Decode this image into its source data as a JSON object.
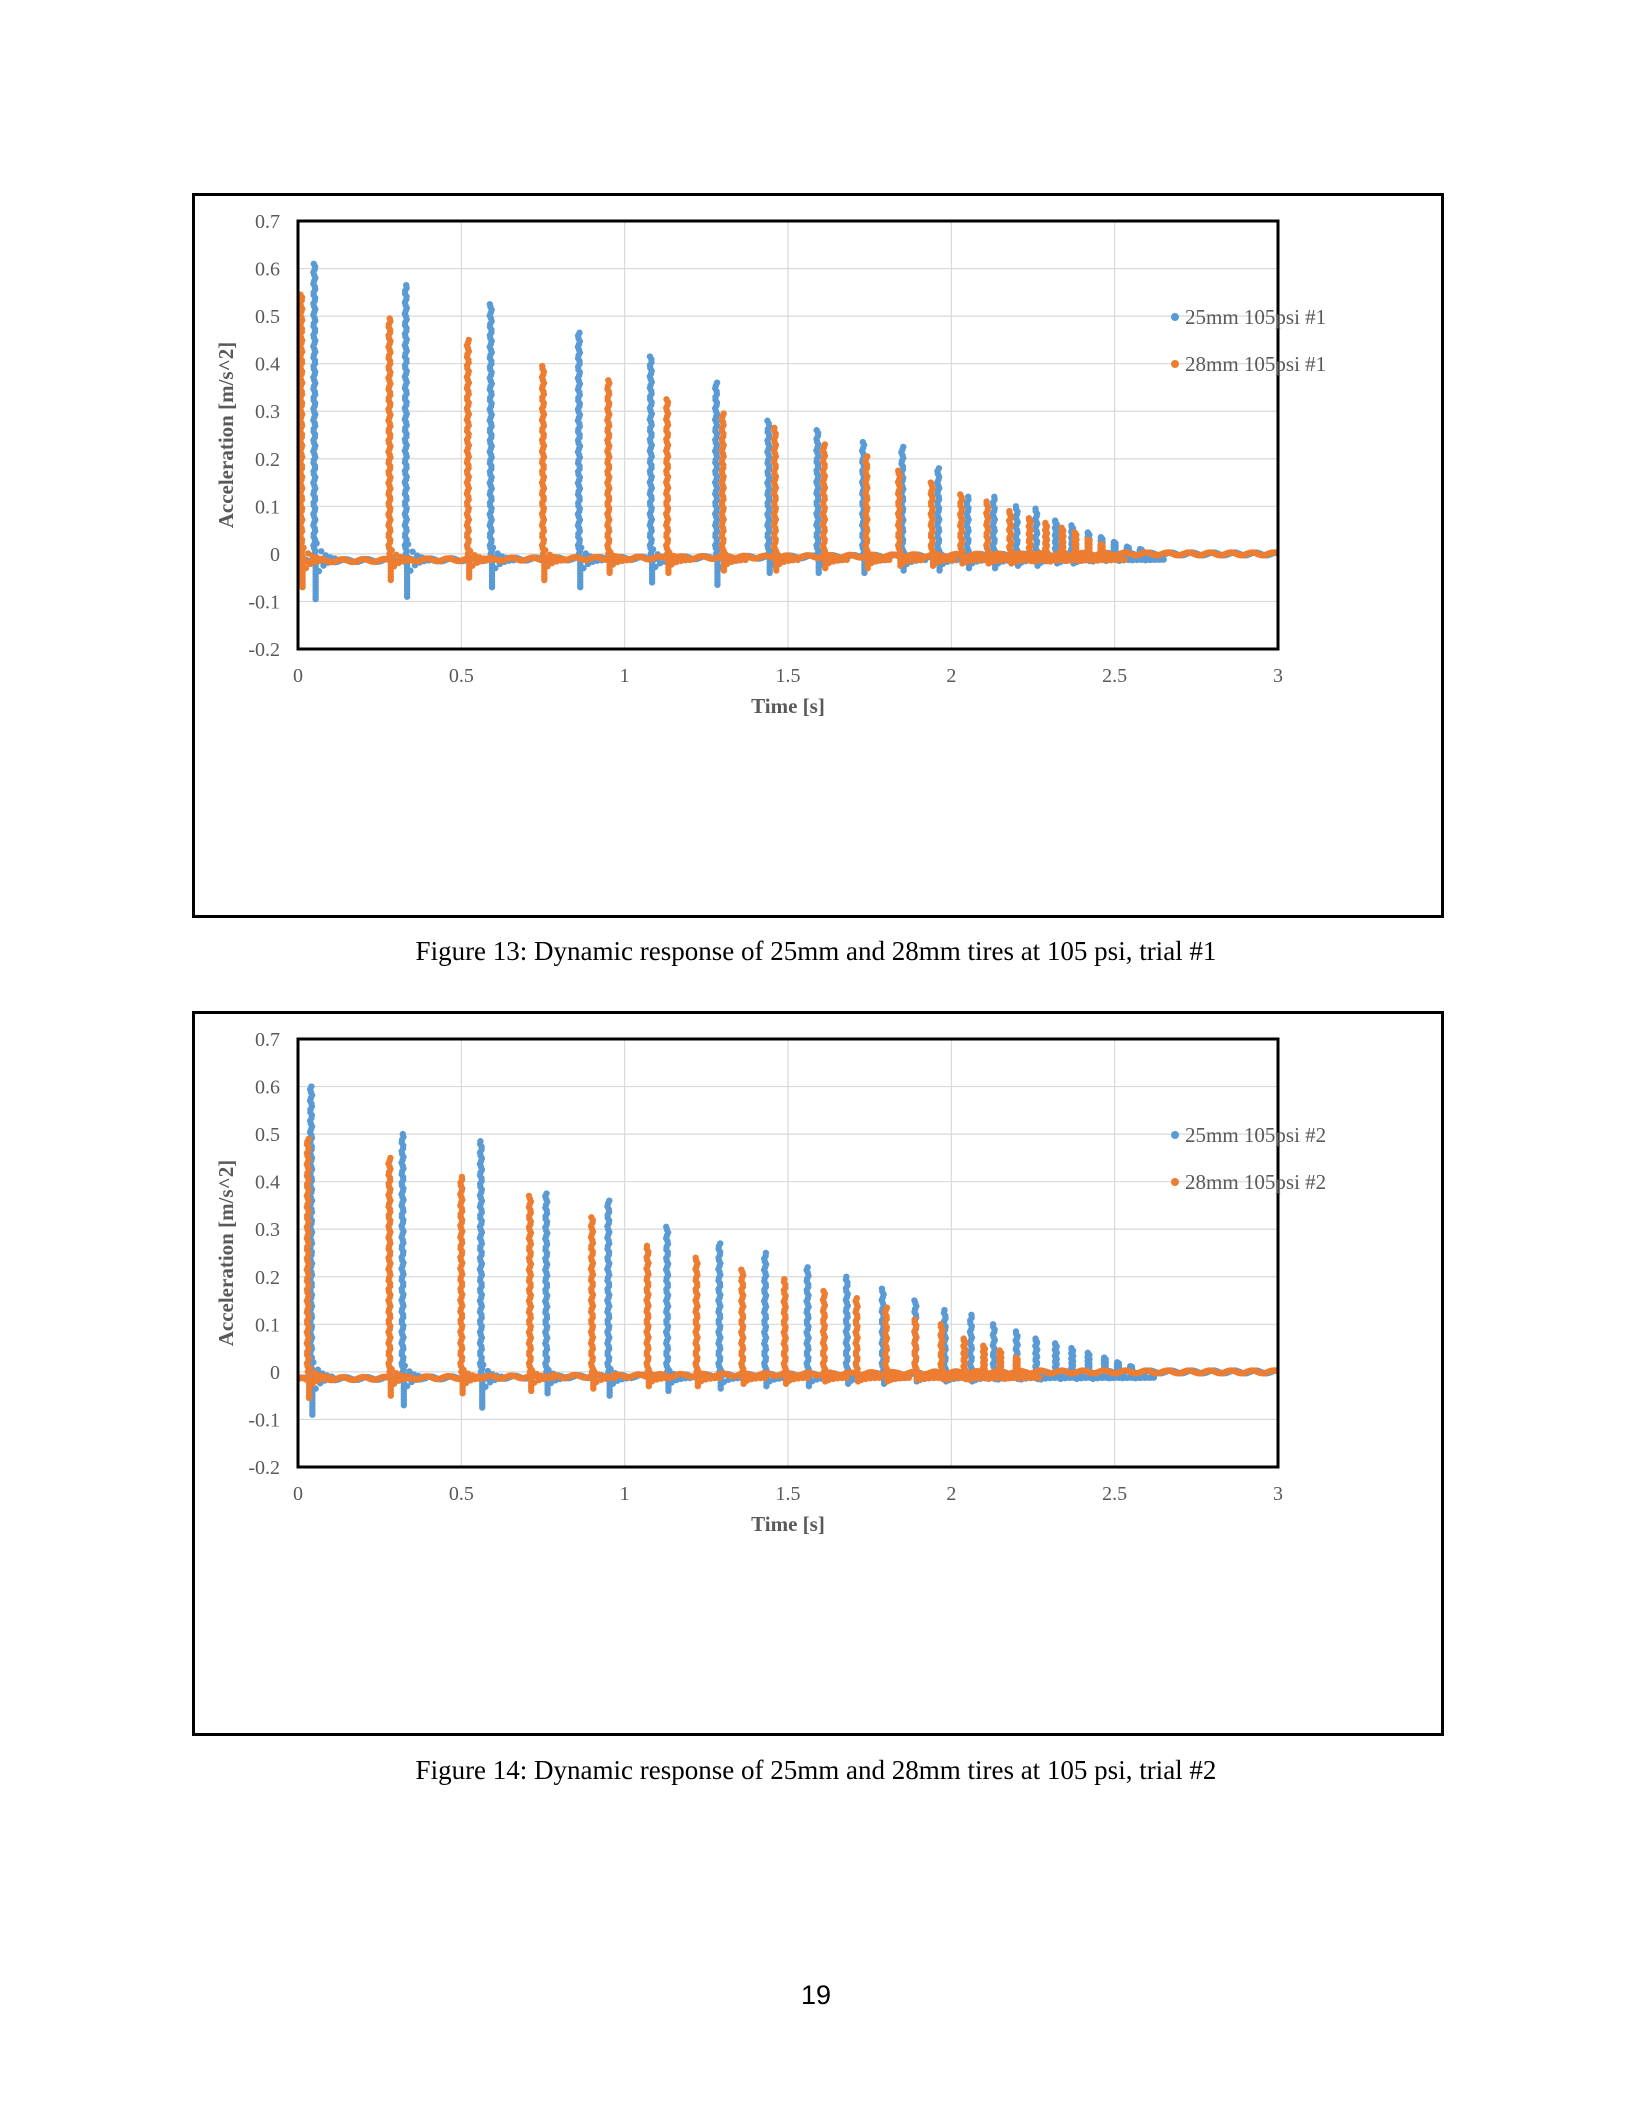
{
  "chart_data": [
    {
      "type": "scatter",
      "xlabel": "Time [s]",
      "ylabel": "Acceleration [m/s^2]",
      "xlim": [
        0,
        3
      ],
      "ylim": [
        -0.2,
        0.7
      ],
      "xticks": [
        "0",
        "0.5",
        "1",
        "1.5",
        "2",
        "2.5",
        "3"
      ],
      "yticks": [
        "0.7",
        "0.6",
        "0.5",
        "0.4",
        "0.3",
        "0.2",
        "0.1",
        "0",
        "-0.1",
        "-0.2"
      ],
      "grid": true,
      "legend_position": "top-right",
      "series": [
        {
          "name": "25mm 105psi #1",
          "color": "#5B9BD5",
          "peaks": [
            {
              "t": 0.05,
              "peak": 0.61,
              "trough": -0.095
            },
            {
              "t": 0.33,
              "peak": 0.565,
              "trough": -0.09
            },
            {
              "t": 0.59,
              "peak": 0.525,
              "trough": -0.07
            },
            {
              "t": 0.86,
              "peak": 0.465,
              "trough": -0.07
            },
            {
              "t": 1.08,
              "peak": 0.415,
              "trough": -0.06
            },
            {
              "t": 1.28,
              "peak": 0.36,
              "trough": -0.065
            },
            {
              "t": 1.44,
              "peak": 0.28,
              "trough": -0.04
            },
            {
              "t": 1.59,
              "peak": 0.26,
              "trough": -0.04
            },
            {
              "t": 1.73,
              "peak": 0.235,
              "trough": -0.04
            },
            {
              "t": 1.85,
              "peak": 0.225,
              "trough": -0.035
            },
            {
              "t": 1.96,
              "peak": 0.18,
              "trough": -0.035
            },
            {
              "t": 2.05,
              "peak": 0.12,
              "trough": -0.03
            },
            {
              "t": 2.13,
              "peak": 0.12,
              "trough": -0.03
            },
            {
              "t": 2.2,
              "peak": 0.1,
              "trough": -0.025
            },
            {
              "t": 2.26,
              "peak": 0.095,
              "trough": -0.025
            },
            {
              "t": 2.32,
              "peak": 0.07,
              "trough": -0.02
            },
            {
              "t": 2.37,
              "peak": 0.06,
              "trough": -0.02
            },
            {
              "t": 2.42,
              "peak": 0.045,
              "trough": -0.015
            },
            {
              "t": 2.46,
              "peak": 0.035,
              "trough": -0.01
            },
            {
              "t": 2.5,
              "peak": 0.025,
              "trough": -0.01
            },
            {
              "t": 2.54,
              "peak": 0.015,
              "trough": -0.005
            },
            {
              "t": 2.58,
              "peak": 0.01,
              "trough": -0.005
            }
          ]
        },
        {
          "name": "28mm 105psi #1",
          "color": "#ED7D31",
          "peaks": [
            {
              "t": 0.01,
              "peak": 0.545,
              "trough": -0.07
            },
            {
              "t": 0.28,
              "peak": 0.495,
              "trough": -0.055
            },
            {
              "t": 0.52,
              "peak": 0.45,
              "trough": -0.05
            },
            {
              "t": 0.75,
              "peak": 0.395,
              "trough": -0.055
            },
            {
              "t": 0.95,
              "peak": 0.365,
              "trough": -0.04
            },
            {
              "t": 1.13,
              "peak": 0.325,
              "trough": -0.04
            },
            {
              "t": 1.3,
              "peak": 0.295,
              "trough": -0.035
            },
            {
              "t": 1.46,
              "peak": 0.265,
              "trough": -0.035
            },
            {
              "t": 1.61,
              "peak": 0.23,
              "trough": -0.03
            },
            {
              "t": 1.74,
              "peak": 0.205,
              "trough": -0.03
            },
            {
              "t": 1.84,
              "peak": 0.175,
              "trough": -0.025
            },
            {
              "t": 1.94,
              "peak": 0.15,
              "trough": -0.025
            },
            {
              "t": 2.03,
              "peak": 0.125,
              "trough": -0.02
            },
            {
              "t": 2.11,
              "peak": 0.11,
              "trough": -0.02
            },
            {
              "t": 2.18,
              "peak": 0.09,
              "trough": -0.02
            },
            {
              "t": 2.24,
              "peak": 0.075,
              "trough": -0.015
            },
            {
              "t": 2.29,
              "peak": 0.065,
              "trough": -0.015
            },
            {
              "t": 2.34,
              "peak": 0.055,
              "trough": -0.01
            },
            {
              "t": 2.38,
              "peak": 0.045,
              "trough": -0.01
            },
            {
              "t": 2.42,
              "peak": 0.03,
              "trough": -0.01
            },
            {
              "t": 2.46,
              "peak": 0.02,
              "trough": -0.005
            }
          ]
        }
      ]
    },
    {
      "type": "scatter",
      "xlabel": "Time [s]",
      "ylabel": "Acceleration [m/s^2]",
      "xlim": [
        0,
        3
      ],
      "ylim": [
        -0.2,
        0.7
      ],
      "xticks": [
        "0",
        "0.5",
        "1",
        "1.5",
        "2",
        "2.5",
        "3"
      ],
      "yticks": [
        "0.7",
        "0.6",
        "0.5",
        "0.4",
        "0.3",
        "0.2",
        "0.1",
        "0",
        "-0.1",
        "-0.2"
      ],
      "grid": true,
      "legend_position": "top-right",
      "series": [
        {
          "name": "25mm 105psi #2",
          "color": "#5B9BD5",
          "peaks": [
            {
              "t": 0.04,
              "peak": 0.6,
              "trough": -0.09
            },
            {
              "t": 0.32,
              "peak": 0.5,
              "trough": -0.07
            },
            {
              "t": 0.56,
              "peak": 0.485,
              "trough": -0.075
            },
            {
              "t": 0.76,
              "peak": 0.375,
              "trough": -0.045
            },
            {
              "t": 0.95,
              "peak": 0.36,
              "trough": -0.05
            },
            {
              "t": 1.13,
              "peak": 0.305,
              "trough": -0.04
            },
            {
              "t": 1.29,
              "peak": 0.27,
              "trough": -0.035
            },
            {
              "t": 1.43,
              "peak": 0.25,
              "trough": -0.03
            },
            {
              "t": 1.56,
              "peak": 0.22,
              "trough": -0.03
            },
            {
              "t": 1.68,
              "peak": 0.2,
              "trough": -0.025
            },
            {
              "t": 1.79,
              "peak": 0.175,
              "trough": -0.025
            },
            {
              "t": 1.89,
              "peak": 0.15,
              "trough": -0.02
            },
            {
              "t": 1.98,
              "peak": 0.13,
              "trough": -0.02
            },
            {
              "t": 2.06,
              "peak": 0.12,
              "trough": -0.02
            },
            {
              "t": 2.13,
              "peak": 0.1,
              "trough": -0.015
            },
            {
              "t": 2.2,
              "peak": 0.085,
              "trough": -0.015
            },
            {
              "t": 2.26,
              "peak": 0.07,
              "trough": -0.015
            },
            {
              "t": 2.32,
              "peak": 0.06,
              "trough": -0.01
            },
            {
              "t": 2.37,
              "peak": 0.05,
              "trough": -0.01
            },
            {
              "t": 2.42,
              "peak": 0.04,
              "trough": -0.01
            },
            {
              "t": 2.47,
              "peak": 0.03,
              "trough": -0.005
            },
            {
              "t": 2.51,
              "peak": 0.02,
              "trough": -0.005
            },
            {
              "t": 2.55,
              "peak": 0.012,
              "trough": -0.005
            }
          ]
        },
        {
          "name": "28mm 105psi #2",
          "color": "#ED7D31",
          "peaks": [
            {
              "t": 0.03,
              "peak": 0.49,
              "trough": -0.055
            },
            {
              "t": 0.28,
              "peak": 0.45,
              "trough": -0.05
            },
            {
              "t": 0.5,
              "peak": 0.41,
              "trough": -0.045
            },
            {
              "t": 0.71,
              "peak": 0.37,
              "trough": -0.04
            },
            {
              "t": 0.9,
              "peak": 0.325,
              "trough": -0.035
            },
            {
              "t": 1.07,
              "peak": 0.265,
              "trough": -0.03
            },
            {
              "t": 1.22,
              "peak": 0.24,
              "trough": -0.03
            },
            {
              "t": 1.36,
              "peak": 0.215,
              "trough": -0.025
            },
            {
              "t": 1.49,
              "peak": 0.195,
              "trough": -0.025
            },
            {
              "t": 1.61,
              "peak": 0.17,
              "trough": -0.02
            },
            {
              "t": 1.71,
              "peak": 0.155,
              "trough": -0.02
            },
            {
              "t": 1.8,
              "peak": 0.135,
              "trough": -0.02
            },
            {
              "t": 1.89,
              "peak": 0.11,
              "trough": -0.015
            },
            {
              "t": 1.97,
              "peak": 0.1,
              "trough": -0.015
            },
            {
              "t": 2.04,
              "peak": 0.07,
              "trough": -0.015
            },
            {
              "t": 2.1,
              "peak": 0.055,
              "trough": -0.01
            },
            {
              "t": 2.15,
              "peak": 0.045,
              "trough": -0.01
            },
            {
              "t": 2.2,
              "peak": 0.03,
              "trough": -0.005
            }
          ]
        }
      ]
    }
  ],
  "captions": [
    "Figure 13: Dynamic response of 25mm and 28mm tires at 105 psi, trial #1",
    "Figure 14: Dynamic response of 25mm and 28mm tires at 105 psi, trial #2"
  ],
  "page_number": "19"
}
